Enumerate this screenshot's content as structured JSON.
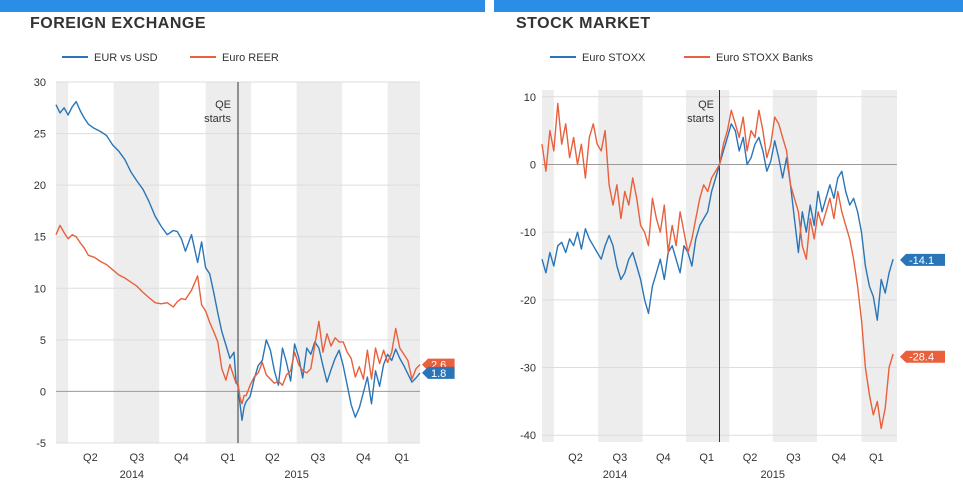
{
  "charts": [
    {
      "id": "fx",
      "title": "FOREIGN EXCHANGE",
      "type": "line",
      "xrange": [
        0,
        360
      ],
      "ylim": [
        -5,
        30
      ],
      "yticks": [
        30,
        25,
        20,
        15,
        10,
        5,
        0,
        -5
      ],
      "quarter_labels": [
        {
          "label": "Q2",
          "x": 34
        },
        {
          "label": "Q3",
          "x": 80
        },
        {
          "label": "Q4",
          "x": 124
        },
        {
          "label": "Q1",
          "x": 170
        },
        {
          "label": "Q2",
          "x": 214
        },
        {
          "label": "Q3",
          "x": 259
        },
        {
          "label": "Q4",
          "x": 304
        },
        {
          "label": "Q1",
          "x": 342
        }
      ],
      "year_labels": [
        {
          "label": "2014",
          "x": 75
        },
        {
          "label": "2015",
          "x": 238
        }
      ],
      "shaded_quarters": [
        [
          0,
          12
        ],
        [
          57,
          102
        ],
        [
          148,
          193
        ],
        [
          238,
          283
        ],
        [
          328,
          360
        ]
      ],
      "qe_marker": {
        "x": 180,
        "label_line1": "QE",
        "label_line2": "starts"
      },
      "colors": {
        "blue": "#2a75b7",
        "red": "#e8603c"
      },
      "legend": [
        {
          "name": "EUR vs USD",
          "color": "#2a75b7"
        },
        {
          "name": "Euro REER",
          "color": "#e8603c"
        }
      ],
      "series": [
        {
          "name": "EUR vs USD",
          "color": "#2a75b7",
          "x": [
            0,
            4,
            8,
            12,
            16,
            20,
            24,
            28,
            32,
            38,
            44,
            50,
            56,
            62,
            68,
            74,
            80,
            86,
            92,
            98,
            104,
            110,
            116,
            120,
            124,
            128,
            134,
            140,
            144,
            148,
            152,
            156,
            160,
            164,
            168,
            172,
            176,
            178,
            180,
            182,
            184,
            186,
            188,
            192,
            196,
            200,
            204,
            208,
            212,
            216,
            220,
            224,
            228,
            232,
            236,
            240,
            244,
            248,
            252,
            256,
            260,
            264,
            268,
            272,
            276,
            280,
            284,
            288,
            292,
            296,
            300,
            304,
            308,
            312,
            316,
            320,
            324,
            328,
            332,
            336,
            340,
            344,
            348,
            352,
            356,
            360
          ],
          "values": [
            27.8,
            27.0,
            27.5,
            26.8,
            27.6,
            28.1,
            27.2,
            26.5,
            25.9,
            25.5,
            25.2,
            24.8,
            23.9,
            23.3,
            22.5,
            21.3,
            20.4,
            19.6,
            18.4,
            17.0,
            16.0,
            15.2,
            15.6,
            15.5,
            14.8,
            13.6,
            15.2,
            12.5,
            14.5,
            12.0,
            11.4,
            9.6,
            7.6,
            5.8,
            4.5,
            3.2,
            3.8,
            1.0,
            0.5,
            -1.2,
            -2.8,
            -1.5,
            -1.0,
            -0.5,
            1.2,
            2.5,
            3.0,
            5.0,
            4.0,
            2.0,
            0.6,
            4.2,
            2.8,
            1.0,
            4.6,
            3.3,
            1.3,
            4.2,
            3.6,
            4.8,
            4.2,
            2.5,
            0.9,
            2.1,
            3.2,
            4.0,
            2.5,
            0.6,
            -1.3,
            -2.5,
            -1.6,
            -0.1,
            1.4,
            -1.2,
            2.0,
            0.5,
            2.6,
            3.6,
            3.0,
            4.1,
            3.2,
            2.5,
            1.7,
            0.9,
            1.3,
            1.8
          ]
        },
        {
          "name": "Euro REER",
          "color": "#e8603c",
          "x": [
            0,
            4,
            8,
            12,
            16,
            20,
            24,
            28,
            32,
            38,
            44,
            50,
            56,
            62,
            68,
            74,
            80,
            86,
            92,
            98,
            104,
            110,
            116,
            120,
            124,
            128,
            134,
            140,
            144,
            148,
            152,
            156,
            160,
            164,
            168,
            172,
            176,
            178,
            180,
            182,
            184,
            186,
            188,
            192,
            196,
            200,
            204,
            208,
            212,
            216,
            220,
            224,
            228,
            232,
            236,
            240,
            244,
            248,
            252,
            256,
            260,
            264,
            268,
            272,
            276,
            280,
            284,
            288,
            292,
            296,
            300,
            304,
            308,
            312,
            316,
            320,
            324,
            328,
            332,
            336,
            340,
            344,
            348,
            352,
            356,
            360
          ],
          "values": [
            15.2,
            16.1,
            15.4,
            14.8,
            15.2,
            15.0,
            14.4,
            13.9,
            13.2,
            13.0,
            12.6,
            12.3,
            11.8,
            11.3,
            11.0,
            10.6,
            10.2,
            9.6,
            9.1,
            8.6,
            8.5,
            8.6,
            8.2,
            8.7,
            9.0,
            8.9,
            9.8,
            11.2,
            8.4,
            7.8,
            6.7,
            5.8,
            4.8,
            2.2,
            1.1,
            2.6,
            1.4,
            0.8,
            0.8,
            -0.6,
            -1.2,
            -0.4,
            -0.4,
            0.6,
            1.4,
            1.8,
            2.8,
            1.6,
            1.2,
            0.8,
            1.0,
            0.6,
            1.6,
            2.0,
            3.8,
            2.6,
            2.0,
            1.8,
            2.2,
            4.5,
            6.8,
            3.8,
            5.6,
            4.4,
            5.2,
            4.8,
            4.8,
            3.8,
            3.2,
            1.4,
            2.4,
            1.2,
            4.0,
            1.2,
            4.2,
            2.7,
            4.0,
            2.8,
            3.8,
            6.1,
            4.2,
            3.6,
            3.0,
            1.2,
            2.2,
            2.6
          ]
        }
      ],
      "end_labels": [
        {
          "text": "2.6",
          "value": 2.6,
          "color": "#e8603c"
        },
        {
          "text": "1.8",
          "value": 1.8,
          "color": "#2a75b7"
        }
      ]
    },
    {
      "id": "stocks",
      "title": "STOCK MARKET",
      "type": "line",
      "xrange": [
        0,
        360
      ],
      "ylim": [
        -41,
        11
      ],
      "yticks": [
        10,
        0,
        -10,
        -20,
        -30,
        -40
      ],
      "quarter_labels": [
        {
          "label": "Q2",
          "x": 34
        },
        {
          "label": "Q3",
          "x": 79
        },
        {
          "label": "Q4",
          "x": 123
        },
        {
          "label": "Q1",
          "x": 167
        },
        {
          "label": "Q2",
          "x": 211
        },
        {
          "label": "Q3",
          "x": 255
        },
        {
          "label": "Q4",
          "x": 301
        },
        {
          "label": "Q1",
          "x": 339
        }
      ],
      "year_labels": [
        {
          "label": "2014",
          "x": 74
        },
        {
          "label": "2015",
          "x": 234
        }
      ],
      "shaded_quarters": [
        [
          0,
          12
        ],
        [
          57,
          102
        ],
        [
          146,
          190
        ],
        [
          234,
          279
        ],
        [
          324,
          360
        ]
      ],
      "qe_marker": {
        "x": 180,
        "label_line1": "QE",
        "label_line2": "starts"
      },
      "colors": {
        "blue": "#2a75b7",
        "red": "#e8603c"
      },
      "legend": [
        {
          "name": "Euro STOXX",
          "color": "#2a75b7"
        },
        {
          "name": "Euro STOXX Banks",
          "color": "#e8603c"
        }
      ],
      "series": [
        {
          "name": "Euro STOXX",
          "color": "#2a75b7",
          "x": [
            0,
            4,
            8,
            12,
            16,
            20,
            24,
            28,
            32,
            36,
            40,
            44,
            48,
            52,
            56,
            60,
            64,
            68,
            72,
            76,
            80,
            84,
            88,
            92,
            96,
            100,
            104,
            108,
            112,
            116,
            120,
            124,
            128,
            132,
            136,
            140,
            144,
            148,
            152,
            156,
            160,
            164,
            168,
            172,
            176,
            180,
            184,
            188,
            192,
            196,
            200,
            204,
            208,
            212,
            216,
            220,
            224,
            228,
            232,
            236,
            240,
            244,
            248,
            252,
            256,
            260,
            264,
            268,
            272,
            276,
            280,
            284,
            288,
            292,
            296,
            300,
            304,
            308,
            312,
            316,
            320,
            324,
            328,
            332,
            336,
            340,
            344,
            348,
            352,
            356
          ],
          "values": [
            -14.0,
            -16.0,
            -13.0,
            -15.0,
            -12.0,
            -11.5,
            -13.0,
            -11.0,
            -12.0,
            -10.0,
            -12.5,
            -9.5,
            -11.0,
            -12.0,
            -13.0,
            -14.0,
            -12.0,
            -10.5,
            -12.0,
            -15.0,
            -17.0,
            -16.0,
            -14.0,
            -13.0,
            -15.0,
            -17.0,
            -20.0,
            -22.0,
            -18.0,
            -16.0,
            -14.0,
            -17.0,
            -13.0,
            -12.0,
            -14.0,
            -16.0,
            -12.0,
            -13.0,
            -15.0,
            -11.0,
            -9.0,
            -8.0,
            -7.0,
            -4.0,
            -2.0,
            0.0,
            2.0,
            4.0,
            6.0,
            5.0,
            2.0,
            4.0,
            0.0,
            1.0,
            3.0,
            4.0,
            2.0,
            -1.0,
            0.5,
            3.5,
            1.0,
            -2.0,
            1.0,
            -3.0,
            -8.0,
            -13.0,
            -7.0,
            -10.0,
            -6.0,
            -9.0,
            -4.0,
            -7.0,
            -5.0,
            -3.0,
            -5.0,
            -2.0,
            -1.0,
            -4.0,
            -6.0,
            -5.0,
            -7.0,
            -10.0,
            -15.0,
            -18.0,
            -19.5,
            -23.0,
            -17.0,
            -19.0,
            -16.0,
            -14.0
          ]
        },
        {
          "name": "Euro STOXX Banks",
          "color": "#e8603c",
          "x": [
            0,
            4,
            8,
            12,
            16,
            20,
            24,
            28,
            32,
            36,
            40,
            44,
            48,
            52,
            56,
            60,
            64,
            68,
            72,
            76,
            80,
            84,
            88,
            92,
            96,
            100,
            104,
            108,
            112,
            116,
            120,
            124,
            128,
            132,
            136,
            140,
            144,
            148,
            152,
            156,
            160,
            164,
            168,
            172,
            176,
            180,
            184,
            188,
            192,
            196,
            200,
            204,
            208,
            212,
            216,
            220,
            224,
            228,
            232,
            236,
            240,
            244,
            248,
            252,
            256,
            260,
            264,
            268,
            272,
            276,
            280,
            284,
            288,
            292,
            296,
            300,
            304,
            308,
            312,
            316,
            320,
            324,
            328,
            332,
            336,
            340,
            344,
            348,
            352,
            356
          ],
          "values": [
            3.0,
            -1.0,
            5.0,
            2.0,
            9.0,
            3.0,
            6.0,
            1.0,
            4.0,
            0.0,
            3.0,
            -2.0,
            4.0,
            6.0,
            3.0,
            2.0,
            5.0,
            -3.0,
            -6.0,
            -3.0,
            -8.0,
            -4.0,
            -6.0,
            -2.0,
            -5.0,
            -9.0,
            -10.0,
            -12.0,
            -5.0,
            -8.0,
            -10.0,
            -6.0,
            -13.0,
            -9.0,
            -12.0,
            -7.0,
            -10.0,
            -13.0,
            -11.0,
            -8.0,
            -5.0,
            -3.0,
            -4.0,
            -2.0,
            -1.0,
            0.0,
            3.0,
            5.0,
            8.0,
            6.0,
            4.0,
            7.0,
            2.0,
            5.0,
            4.0,
            8.0,
            5.0,
            1.0,
            3.0,
            7.0,
            6.0,
            4.0,
            2.0,
            -3.0,
            -5.0,
            -7.0,
            -12.0,
            -14.0,
            -8.0,
            -11.0,
            -7.0,
            -9.0,
            -7.0,
            -5.0,
            -8.0,
            -4.0,
            -7.0,
            -9.0,
            -11.0,
            -14.0,
            -18.0,
            -23.0,
            -30.0,
            -34.0,
            -37.0,
            -35.0,
            -39.0,
            -36.0,
            -30.0,
            -28.0
          ]
        }
      ],
      "end_labels": [
        {
          "text": "-14.1",
          "value": -14.1,
          "color": "#2a75b7"
        },
        {
          "text": "-28.4",
          "value": -28.4,
          "color": "#e8603c"
        }
      ]
    }
  ],
  "colors": {
    "top_bar": "#2b8ee6",
    "shade": "#ededed",
    "grid": "#dddddd"
  }
}
